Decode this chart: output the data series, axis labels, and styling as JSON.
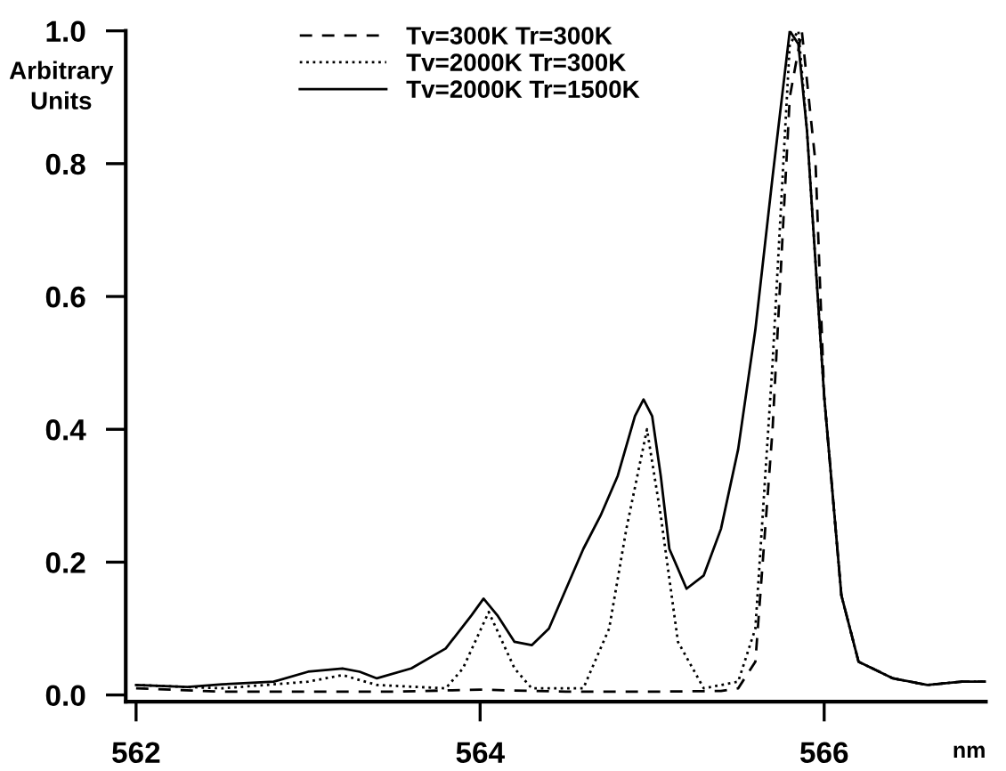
{
  "chart_data": {
    "type": "line",
    "xlabel": "nm",
    "ylabel": "Arbitrary\nUnits",
    "xlim": [
      561.94,
      566.94
    ],
    "ylim": [
      -0.01,
      1.0
    ],
    "xticks": [
      562,
      564,
      566
    ],
    "yticks": [
      {
        "value": 0,
        "label": "0.0"
      },
      0.2,
      0.4,
      0.6,
      0.8,
      {
        "value": 1,
        "label": "1.0"
      }
    ],
    "grid": false,
    "legend": "top",
    "marker": "none",
    "series": [
      {
        "name": "Tv=300K Tr=300K",
        "color": "#000000",
        "line_style": "dashed",
        "x": [
          562.0,
          562.5,
          563.0,
          563.5,
          564.0,
          564.5,
          565.0,
          565.4,
          565.5,
          565.6,
          565.7,
          565.8,
          565.87,
          565.95,
          566.0,
          566.1,
          566.2,
          566.4,
          566.6,
          566.8,
          566.94
        ],
        "values": [
          0.01,
          0.005,
          0.005,
          0.005,
          0.008,
          0.005,
          0.005,
          0.006,
          0.01,
          0.05,
          0.4,
          0.9,
          1.0,
          0.8,
          0.45,
          0.15,
          0.05,
          0.025,
          0.015,
          0.02,
          0.02
        ]
      },
      {
        "name": "Tv=2000K Tr=300K",
        "color": "#000000",
        "line_style": "dotted",
        "x": [
          562.0,
          562.5,
          563.0,
          563.2,
          563.4,
          563.8,
          563.9,
          564.05,
          564.2,
          564.3,
          564.6,
          564.75,
          564.85,
          564.97,
          565.05,
          565.15,
          565.3,
          565.5,
          565.6,
          565.7,
          565.8,
          565.85,
          565.9,
          566.0,
          566.1,
          566.2,
          566.4,
          566.6,
          566.8,
          566.94
        ],
        "values": [
          0.015,
          0.01,
          0.02,
          0.03,
          0.015,
          0.01,
          0.04,
          0.125,
          0.04,
          0.01,
          0.01,
          0.1,
          0.25,
          0.4,
          0.27,
          0.08,
          0.01,
          0.02,
          0.1,
          0.5,
          0.98,
          1.0,
          0.85,
          0.45,
          0.15,
          0.05,
          0.025,
          0.015,
          0.02,
          0.02
        ]
      },
      {
        "name": "Tv=2000K Tr=1500K",
        "color": "#000000",
        "line_style": "solid",
        "x": [
          562.0,
          562.3,
          562.5,
          562.8,
          563.0,
          563.2,
          563.3,
          563.4,
          563.6,
          563.8,
          563.95,
          564.02,
          564.1,
          564.2,
          564.3,
          564.4,
          564.5,
          564.6,
          564.7,
          564.8,
          564.9,
          564.95,
          565.0,
          565.05,
          565.1,
          565.2,
          565.3,
          565.4,
          565.5,
          565.6,
          565.7,
          565.8,
          565.85,
          565.9,
          566.0,
          566.1,
          566.2,
          566.4,
          566.6,
          566.8,
          566.94
        ],
        "values": [
          0.015,
          0.012,
          0.016,
          0.02,
          0.035,
          0.04,
          0.035,
          0.025,
          0.04,
          0.07,
          0.12,
          0.145,
          0.12,
          0.08,
          0.075,
          0.1,
          0.16,
          0.22,
          0.27,
          0.33,
          0.42,
          0.445,
          0.42,
          0.33,
          0.22,
          0.16,
          0.18,
          0.25,
          0.37,
          0.55,
          0.78,
          1.0,
          0.98,
          0.85,
          0.45,
          0.15,
          0.05,
          0.025,
          0.015,
          0.02,
          0.02
        ]
      }
    ]
  }
}
